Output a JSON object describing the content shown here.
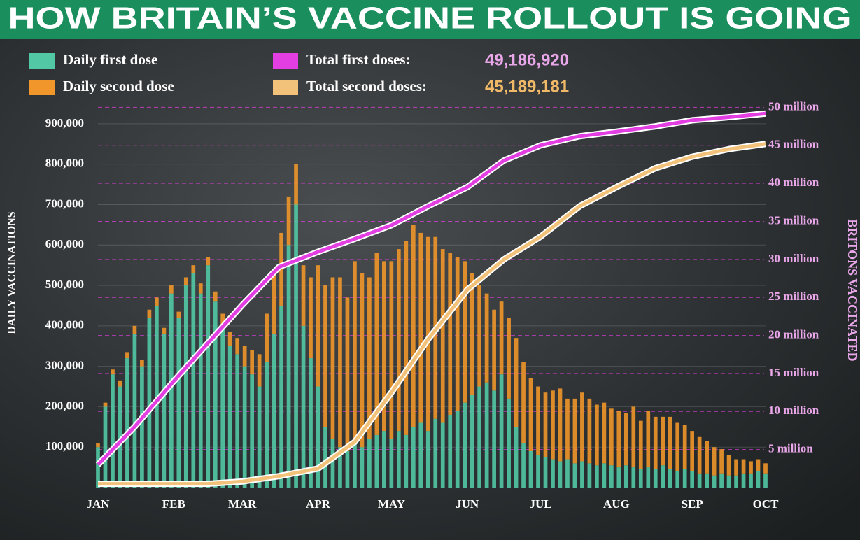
{
  "chart_data": {
    "type": "combo",
    "title": "HOW BRITAIN’S VACCINE ROLLOUT IS GOING",
    "y_label": "DAILY VACCINATIONS",
    "y2_label": "BRITONS VACCINATED",
    "xlim": [
      0,
      273
    ],
    "xticks": [
      {
        "value": 0,
        "label": "JAN"
      },
      {
        "value": 31,
        "label": "FEB"
      },
      {
        "value": 59,
        "label": "MAR"
      },
      {
        "value": 90,
        "label": "APR"
      },
      {
        "value": 120,
        "label": "MAY"
      },
      {
        "value": 151,
        "label": "JUN"
      },
      {
        "value": 181,
        "label": "JUL"
      },
      {
        "value": 212,
        "label": "AUG"
      },
      {
        "value": 243,
        "label": "SEP"
      },
      {
        "value": 273,
        "label": "OCT"
      }
    ],
    "ylim": [
      0,
      950000
    ],
    "yticks": [
      {
        "value": 100000,
        "label": "100,000"
      },
      {
        "value": 200000,
        "label": "200,000"
      },
      {
        "value": 300000,
        "label": "300,000"
      },
      {
        "value": 400000,
        "label": "400,000"
      },
      {
        "value": 500000,
        "label": "500,000"
      },
      {
        "value": 600000,
        "label": "600,000"
      },
      {
        "value": 700000,
        "label": "700,000"
      },
      {
        "value": 800000,
        "label": "800,000"
      },
      {
        "value": 900000,
        "label": "900,000"
      }
    ],
    "y2lim": [
      0,
      50500000
    ],
    "y2ticks": [
      {
        "value": 5000000,
        "label": "5 million"
      },
      {
        "value": 10000000,
        "label": "10 million"
      },
      {
        "value": 15000000,
        "label": "15 million"
      },
      {
        "value": 20000000,
        "label": "20 million"
      },
      {
        "value": 25000000,
        "label": "25 million"
      },
      {
        "value": 30000000,
        "label": "30 million"
      },
      {
        "value": 35000000,
        "label": "35 million"
      },
      {
        "value": 40000000,
        "label": "40 million"
      },
      {
        "value": 45000000,
        "label": "45 million"
      },
      {
        "value": 50000000,
        "label": "50 million"
      }
    ],
    "x": [
      0,
      3,
      6,
      9,
      12,
      15,
      18,
      21,
      24,
      27,
      30,
      33,
      36,
      39,
      42,
      45,
      48,
      51,
      54,
      57,
      60,
      63,
      66,
      69,
      72,
      75,
      78,
      81,
      84,
      87,
      90,
      93,
      96,
      99,
      102,
      105,
      108,
      111,
      114,
      117,
      120,
      123,
      126,
      129,
      132,
      135,
      138,
      141,
      144,
      147,
      150,
      153,
      156,
      159,
      162,
      165,
      168,
      171,
      174,
      177,
      180,
      183,
      186,
      189,
      192,
      195,
      198,
      201,
      204,
      207,
      210,
      213,
      216,
      219,
      222,
      225,
      228,
      231,
      234,
      237,
      240,
      243,
      246,
      249,
      252,
      255,
      258,
      261,
      264,
      267,
      270,
      273
    ],
    "series": [
      {
        "name": "Daily first dose",
        "type": "bar",
        "color": "#52c9a4",
        "values": [
          100000,
          200000,
          280000,
          250000,
          320000,
          380000,
          300000,
          420000,
          450000,
          380000,
          480000,
          420000,
          500000,
          530000,
          480000,
          550000,
          460000,
          400000,
          350000,
          330000,
          300000,
          280000,
          250000,
          310000,
          380000,
          450000,
          600000,
          700000,
          400000,
          320000,
          250000,
          150000,
          120000,
          100000,
          90000,
          110000,
          100000,
          120000,
          130000,
          140000,
          120000,
          140000,
          130000,
          150000,
          160000,
          140000,
          170000,
          160000,
          180000,
          190000,
          210000,
          230000,
          250000,
          260000,
          240000,
          280000,
          220000,
          150000,
          110000,
          90000,
          80000,
          75000,
          70000,
          65000,
          70000,
          60000,
          65000,
          60000,
          55000,
          60000,
          55000,
          50000,
          55000,
          50000,
          45000,
          50000,
          45000,
          55000,
          45000,
          40000,
          45000,
          40000,
          35000,
          35000,
          30000,
          35000,
          30000,
          30000,
          35000,
          35000,
          40000,
          35000
        ]
      },
      {
        "name": "Daily second dose",
        "type": "bar",
        "color": "#f0962a",
        "values": [
          10000,
          10000,
          12000,
          15000,
          15000,
          20000,
          15000,
          20000,
          20000,
          15000,
          20000,
          15000,
          20000,
          20000,
          25000,
          20000,
          25000,
          30000,
          35000,
          40000,
          50000,
          60000,
          80000,
          120000,
          150000,
          180000,
          120000,
          100000,
          150000,
          200000,
          300000,
          350000,
          400000,
          420000,
          380000,
          450000,
          430000,
          400000,
          450000,
          420000,
          440000,
          450000,
          480000,
          500000,
          470000,
          480000,
          450000,
          430000,
          400000,
          380000,
          350000,
          300000,
          250000,
          220000,
          200000,
          180000,
          200000,
          220000,
          200000,
          180000,
          170000,
          160000,
          170000,
          180000,
          150000,
          160000,
          170000,
          160000,
          150000,
          150000,
          140000,
          140000,
          130000,
          150000,
          120000,
          140000,
          130000,
          120000,
          130000,
          120000,
          110000,
          100000,
          90000,
          80000,
          70000,
          60000,
          50000,
          40000,
          35000,
          30000,
          30000,
          25000
        ]
      },
      {
        "name": "Total first doses:",
        "type": "line",
        "axis": "y2",
        "color": "#e23ee2",
        "total": 49186920,
        "total_label": "49,186,920",
        "label_color": "#e9a6e9",
        "x": [
          0,
          15,
          31,
          45,
          59,
          74,
          90,
          105,
          120,
          135,
          151,
          166,
          181,
          197,
          212,
          228,
          243,
          258,
          273
        ],
        "values": [
          3000000,
          8000000,
          14000000,
          19000000,
          24000000,
          29000000,
          31000000,
          32700000,
          34500000,
          37000000,
          39500000,
          43000000,
          45000000,
          46200000,
          46800000,
          47500000,
          48300000,
          48700000,
          49186920
        ]
      },
      {
        "name": "Total second doses:",
        "type": "line",
        "axis": "y2",
        "color": "#f2c27a",
        "total": 45189181,
        "total_label": "45,189,181",
        "label_color": "#f0b968",
        "x": [
          0,
          15,
          31,
          45,
          59,
          74,
          90,
          105,
          120,
          135,
          151,
          166,
          181,
          197,
          212,
          228,
          243,
          258,
          273
        ],
        "values": [
          500000,
          500000,
          500000,
          500000,
          800000,
          1500000,
          2500000,
          6000000,
          12500000,
          19500000,
          26000000,
          30000000,
          33000000,
          37000000,
          39500000,
          42000000,
          43500000,
          44500000,
          45189181
        ]
      }
    ]
  }
}
